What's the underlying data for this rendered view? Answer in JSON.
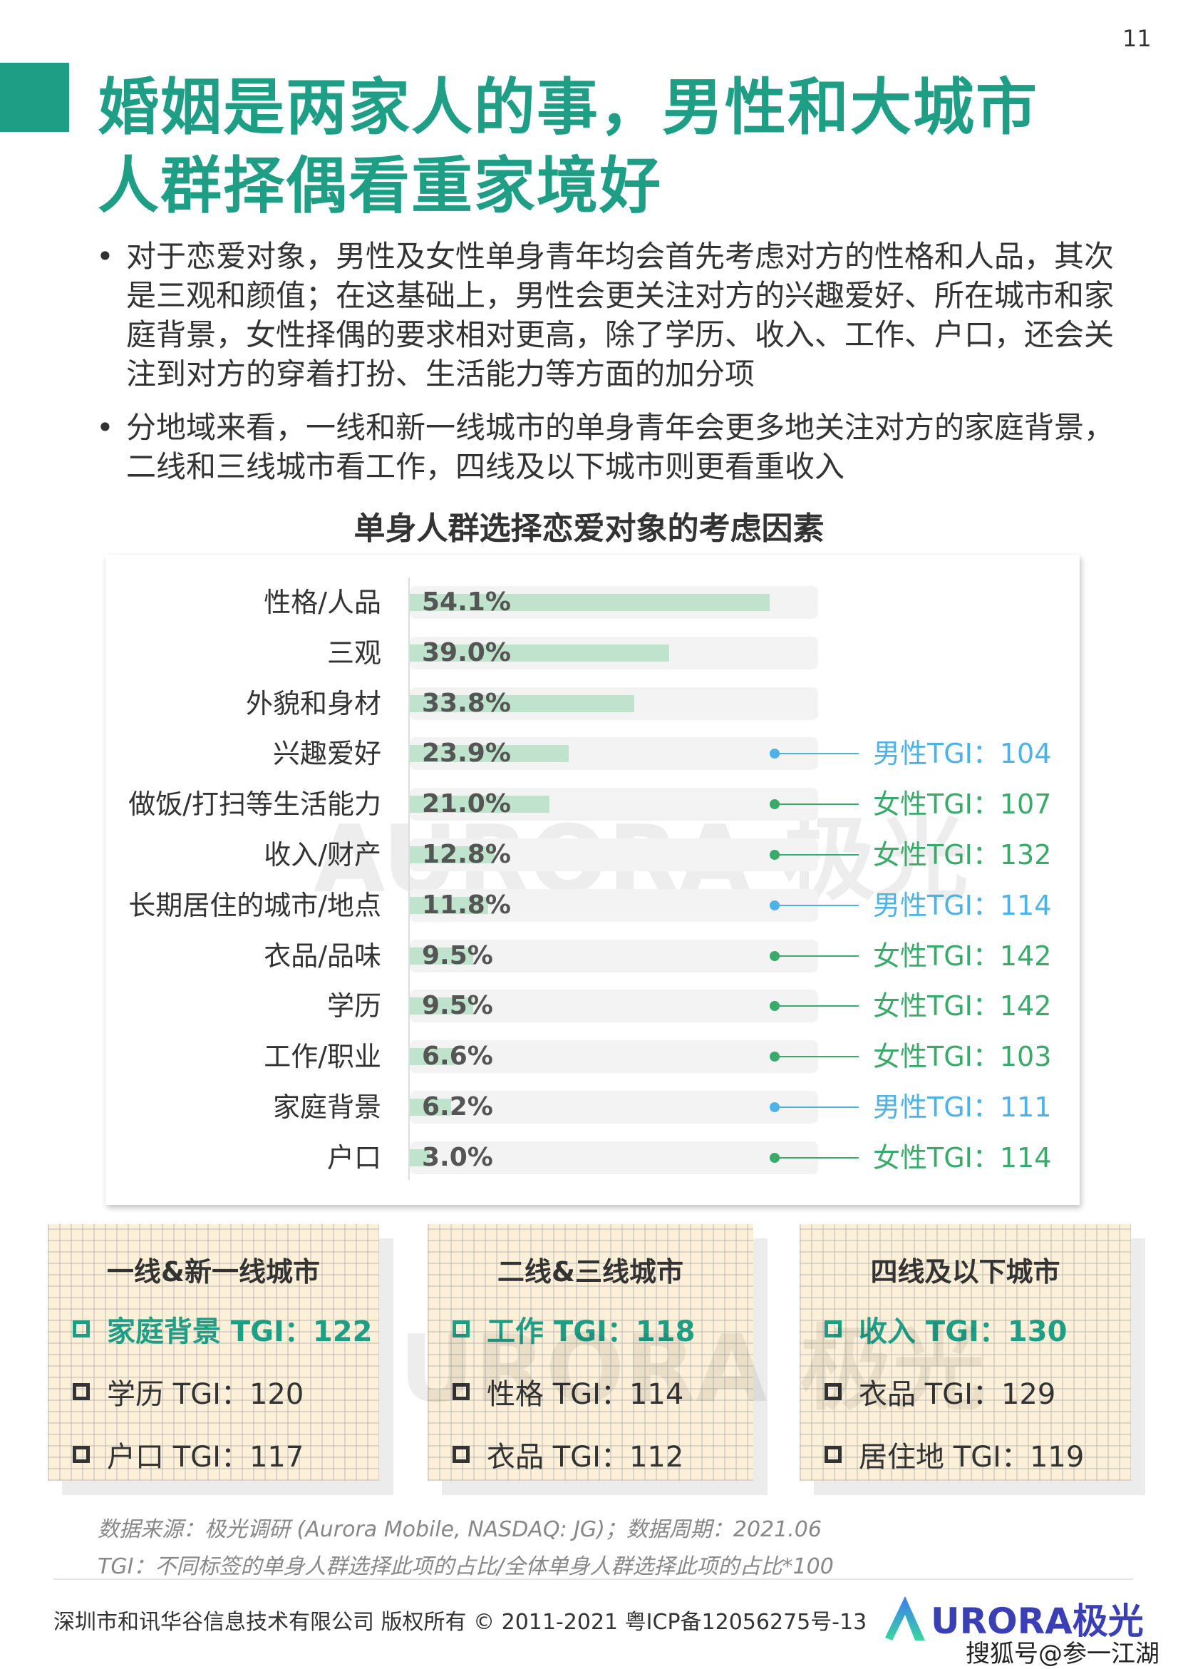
{
  "page_number": "11",
  "title": [
    "婚姻是两家人的事，男性和大城市",
    "人群择偶看重家境好"
  ],
  "bullets": [
    "对于恋爱对象，男性及女性单身青年均会首先考虑对方的性格和人品，其次是三观和颜值；在这基础上，男性会更关注对方的兴趣爱好、所在城市和家庭背景，女性择偶的要求相对更高，除了学历、收入、工作、户口，还会关注到对方的穿着打扮、生活能力等方面的加分项",
    "分地域来看，一线和新一线城市的单身青年会更多地关注对方的家庭背景，二线和三线城市看工作，四线及以下城市则更看重收入"
  ],
  "chart_data": {
    "type": "bar",
    "orientation": "horizontal",
    "title": "单身人群选择恋爱对象的考虑因素",
    "categories": [
      "性格/人品",
      "三观",
      "外貌和身材",
      "兴趣爱好",
      "做饭/打扫等生活能力",
      "收入/财产",
      "长期居住的城市/地点",
      "衣品/品味",
      "学历",
      "工作/职业",
      "家庭背景",
      "户口"
    ],
    "values": [
      54.1,
      39.0,
      33.8,
      23.9,
      21.0,
      12.8,
      11.8,
      9.5,
      9.5,
      6.6,
      6.2,
      3.0
    ],
    "value_labels": [
      "54.1%",
      "39.0%",
      "33.8%",
      "23.9%",
      "21.0%",
      "12.8%",
      "11.8%",
      "9.5%",
      "9.5%",
      "6.6%",
      "6.2%",
      "3.0%"
    ],
    "annotations": [
      null,
      null,
      null,
      {
        "gender": "male",
        "text": "男性TGI：104"
      },
      {
        "gender": "female",
        "text": "女性TGI：107"
      },
      {
        "gender": "female",
        "text": "女性TGI：132"
      },
      {
        "gender": "male",
        "text": "男性TGI：114"
      },
      {
        "gender": "female",
        "text": "女性TGI：142"
      },
      {
        "gender": "female",
        "text": "女性TGI：142"
      },
      {
        "gender": "female",
        "text": "女性TGI：103"
      },
      {
        "gender": "male",
        "text": "男性TGI：111"
      },
      {
        "gender": "female",
        "text": "女性TGI：114"
      }
    ],
    "colors": {
      "bar": "#bfe3cc",
      "track": "#f3f3f3",
      "male": "#4db3e6",
      "female": "#3aaa6a"
    }
  },
  "watermark": "AURORA极光",
  "city_boxes": [
    {
      "title": "一线&新一线城市",
      "items": [
        "家庭背景 TGI：122",
        "学历 TGI：120",
        "户口 TGI：117"
      ]
    },
    {
      "title": "二线&三线城市",
      "items": [
        "工作 TGI：118",
        "性格 TGI：114",
        "衣品 TGI：112"
      ]
    },
    {
      "title": "四线及以下城市",
      "items": [
        "收入 TGI：130",
        "衣品 TGI：129",
        "居住地 TGI：119"
      ]
    }
  ],
  "footnotes": [
    "数据来源：极光调研 (Aurora Mobile, NASDAQ: JG)；数据周期：2021.06",
    "TGI：不同标签的单身人群选择此项的占比/全体单身人群选择此项的占比*100"
  ],
  "footer": {
    "copyright": "深圳市和讯华谷信息技术有限公司 版权所有 © 2011-2021 粤ICP备12056275号-13",
    "logo_text": "URORA极光",
    "source_tag": "搜狐号@参一江湖"
  },
  "accent": "#1f9e86"
}
